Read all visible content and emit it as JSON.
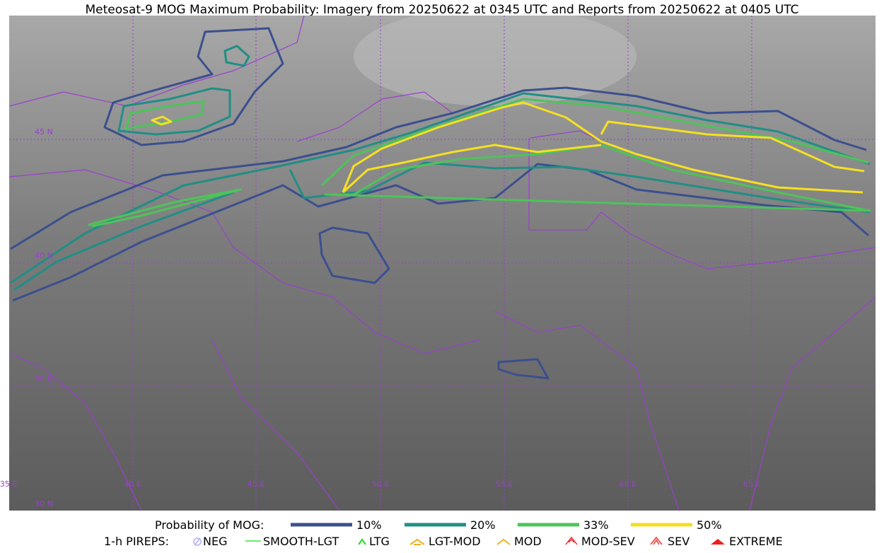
{
  "title": "Meteosat-9 MOG Maximum Probability: Imagery from 20250622 at 0345 UTC and Reports from 20250622 at 0405 UTC",
  "map": {
    "lat_labels": [
      "45 N",
      "40 N",
      "35 N",
      "30 N"
    ],
    "lon_labels": [
      "35 E",
      "40 E",
      "45 E",
      "50 E",
      "55 E",
      "60 E",
      "65 E"
    ]
  },
  "legend": {
    "probability": {
      "title": "Probability of MOG:",
      "levels": [
        {
          "label": "10%",
          "color": "#3b4f8f"
        },
        {
          "label": "20%",
          "color": "#1f8f85"
        },
        {
          "label": "33%",
          "color": "#4cc45a"
        },
        {
          "label": "50%",
          "color": "#f5e020"
        }
      ]
    },
    "pireps": {
      "title": "1-h PIREPS:",
      "items": [
        "NEG",
        "SMOOTH-LGT",
        "LTG",
        "LGT-MOD",
        "MOD",
        "MOD-SEV",
        "SEV",
        "EXTREME"
      ]
    }
  }
}
